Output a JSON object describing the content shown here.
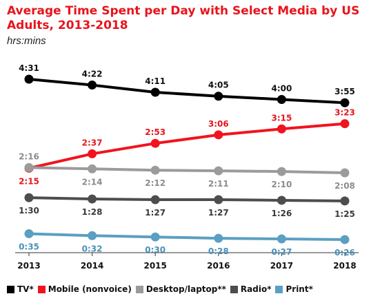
{
  "chart_data": {
    "type": "line",
    "title": "Average Time Spent per Day with Select Media by US Adults, 2013-2018",
    "subtitle": "hrs:mins",
    "categories": [
      "2013",
      "2014",
      "2015",
      "2016",
      "2017",
      "2018"
    ],
    "ylim": [
      0,
      300
    ],
    "grid": false,
    "legend_position": "bottom",
    "series": [
      {
        "name": "TV*",
        "color": "#000000",
        "label_color": "#111111",
        "values": [
          271,
          262,
          251,
          245,
          240,
          235
        ],
        "labels": [
          "4:31",
          "4:22",
          "4:11",
          "4:05",
          "4:00",
          "3:55"
        ],
        "label_pos": [
          "above",
          "above",
          "above",
          "above",
          "above",
          "above"
        ]
      },
      {
        "name": "Mobile (nonvoice)",
        "color": "#f0141e",
        "label_color": "#e8141c",
        "values": [
          135,
          157,
          173,
          186,
          195,
          203
        ],
        "labels": [
          "2:15",
          "2:37",
          "2:53",
          "3:06",
          "3:15",
          "3:23"
        ],
        "label_pos": [
          "below",
          "above",
          "above",
          "above",
          "above",
          "above"
        ]
      },
      {
        "name": "Desktop/laptop**",
        "color": "#9b9b9b",
        "label_color": "#8c8c8c",
        "values": [
          136,
          134,
          132,
          131,
          130,
          128
        ],
        "labels": [
          "2:16",
          "2:14",
          "2:12",
          "2:11",
          "2:10",
          "2:08"
        ],
        "label_pos": [
          "above",
          "below",
          "below",
          "below",
          "below",
          "below"
        ]
      },
      {
        "name": "Radio*",
        "color": "#4d4d4d",
        "label_color": "#3a3a3a",
        "values": [
          90,
          88,
          87,
          87,
          86,
          85
        ],
        "labels": [
          "1:30",
          "1:28",
          "1:27",
          "1:27",
          "1:26",
          "1:25"
        ],
        "label_pos": [
          "below",
          "below",
          "below",
          "below",
          "below",
          "below"
        ]
      },
      {
        "name": "Print*",
        "color": "#5b9fc2",
        "label_color": "#4a90b8",
        "values": [
          35,
          32,
          30,
          28,
          27,
          26
        ],
        "labels": [
          "0:35",
          "0:32",
          "0:30",
          "0:28",
          "0:27",
          "0:26"
        ],
        "label_pos": [
          "below",
          "below",
          "below",
          "below",
          "below",
          "below"
        ]
      }
    ]
  }
}
